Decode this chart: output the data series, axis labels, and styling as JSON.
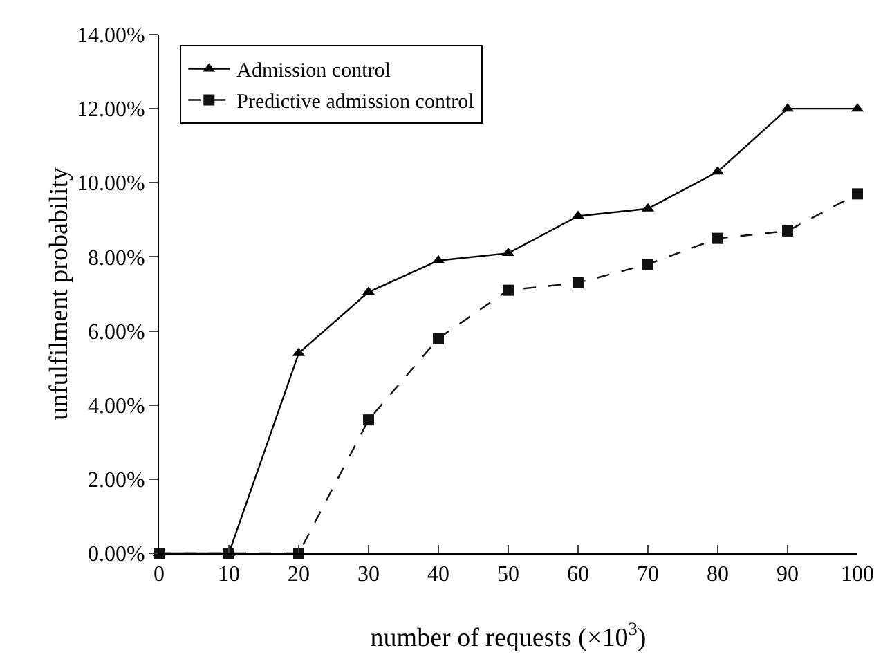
{
  "chart_data": {
    "type": "line",
    "xlabel": "number of requests (×10$^{3}$)",
    "ylabel": "unfulfilment probability",
    "x": [
      0,
      10,
      20,
      30,
      40,
      50,
      60,
      70,
      80,
      90,
      100
    ],
    "series": [
      {
        "name": "Admission control",
        "color": "#000000",
        "marker": "triangle",
        "line_style": "solid",
        "values": [
          0,
          0,
          5.4,
          7.05,
          7.9,
          8.1,
          9.1,
          9.3,
          10.3,
          12.0,
          12.0
        ]
      },
      {
        "name": "Predictive admission control",
        "color": "#111111",
        "marker": "square",
        "line_style": "dashed",
        "values": [
          0,
          0,
          0,
          3.6,
          5.8,
          7.1,
          7.3,
          7.8,
          8.5,
          8.7,
          9.7
        ]
      }
    ],
    "xlim": [
      0,
      100
    ],
    "xticks": [
      0,
      10,
      20,
      30,
      40,
      50,
      60,
      70,
      80,
      90,
      100
    ],
    "ylim": [
      0,
      14
    ],
    "yticks": [
      {
        "value": 0,
        "label": "0.00%"
      },
      {
        "value": 2,
        "label": "2.00%"
      },
      {
        "value": 4,
        "label": "4.00%"
      },
      {
        "value": 6,
        "label": "6.00%"
      },
      {
        "value": 8,
        "label": "8.00%"
      },
      {
        "value": 10,
        "label": "10.00%"
      },
      {
        "value": 12,
        "label": "12.00%"
      },
      {
        "value": 14,
        "label": "14.00%"
      }
    ],
    "grid": false,
    "legend": "top left"
  }
}
